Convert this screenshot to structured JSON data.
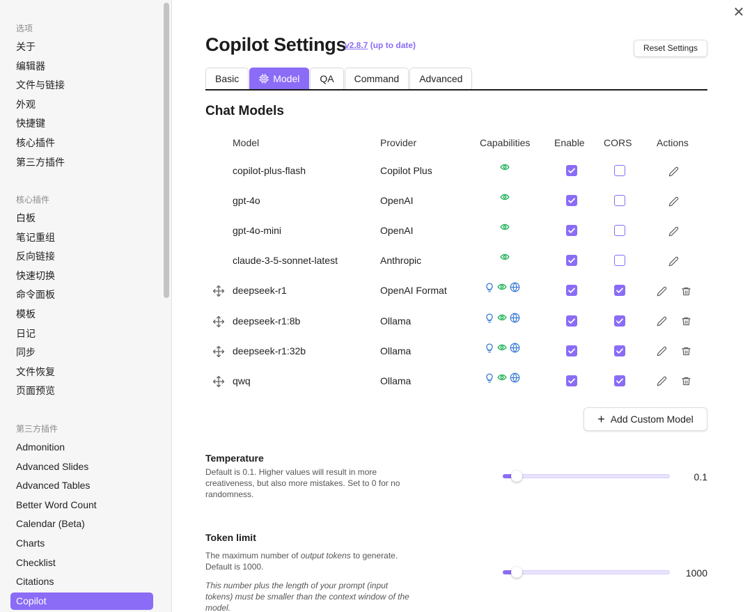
{
  "sidebar": {
    "groups": [
      {
        "title": "选项",
        "items": [
          "关于",
          "编辑器",
          "文件与链接",
          "外观",
          "快捷键",
          "核心插件",
          "第三方插件"
        ]
      },
      {
        "title": "核心插件",
        "items": [
          "白板",
          "笔记重组",
          "反向链接",
          "快速切换",
          "命令面板",
          "模板",
          "日记",
          "同步",
          "文件恢复",
          "页面预览"
        ]
      },
      {
        "title": "第三方插件",
        "items": [
          "Admonition",
          "Advanced Slides",
          "Advanced Tables",
          "Better Word Count",
          "Calendar (Beta)",
          "Charts",
          "Checklist",
          "Citations",
          "Copilot"
        ]
      }
    ],
    "active_item": "Copilot"
  },
  "header": {
    "title": "Copilot Settings",
    "version": "v2.8.7",
    "version_status": "(up to date)",
    "reset_label": "Reset Settings",
    "close_symbol": "✕"
  },
  "tabs": [
    {
      "label": "Basic",
      "active": false,
      "icon": ""
    },
    {
      "label": "Model",
      "active": true,
      "icon": "chip-icon"
    },
    {
      "label": "QA",
      "active": false,
      "icon": ""
    },
    {
      "label": "Command",
      "active": false,
      "icon": ""
    },
    {
      "label": "Advanced",
      "active": false,
      "icon": ""
    }
  ],
  "chat_models": {
    "section_title": "Chat Models",
    "columns": {
      "model": "Model",
      "provider": "Provider",
      "capabilities": "Capabilities",
      "enable": "Enable",
      "cors": "CORS",
      "actions": "Actions"
    },
    "rows": [
      {
        "model": "copilot-plus-flash",
        "provider": "Copilot Plus",
        "caps": [
          "vision"
        ],
        "enable": true,
        "cors": false,
        "builtin": true
      },
      {
        "model": "gpt-4o",
        "provider": "OpenAI",
        "caps": [
          "vision"
        ],
        "enable": true,
        "cors": false,
        "builtin": true
      },
      {
        "model": "gpt-4o-mini",
        "provider": "OpenAI",
        "caps": [
          "vision"
        ],
        "enable": true,
        "cors": false,
        "builtin": true
      },
      {
        "model": "claude-3-5-sonnet-latest",
        "provider": "Anthropic",
        "caps": [
          "vision"
        ],
        "enable": true,
        "cors": false,
        "builtin": true
      },
      {
        "model": "deepseek-r1",
        "provider": "OpenAI Format",
        "caps": [
          "reasoning",
          "vision",
          "websearch"
        ],
        "enable": true,
        "cors": true,
        "builtin": false
      },
      {
        "model": "deepseek-r1:8b",
        "provider": "Ollama",
        "caps": [
          "reasoning",
          "vision",
          "websearch"
        ],
        "enable": true,
        "cors": true,
        "builtin": false
      },
      {
        "model": "deepseek-r1:32b",
        "provider": "Ollama",
        "caps": [
          "reasoning",
          "vision",
          "websearch"
        ],
        "enable": true,
        "cors": true,
        "builtin": false
      },
      {
        "model": "qwq",
        "provider": "Ollama",
        "caps": [
          "reasoning",
          "vision",
          "websearch"
        ],
        "enable": true,
        "cors": true,
        "builtin": false
      }
    ],
    "add_label": "Add Custom Model"
  },
  "settings": {
    "temperature": {
      "name": "Temperature",
      "description": "Default is 0.1. Higher values will result in more creativeness, but also more mistakes. Set to 0 for no randomness.",
      "value": "0.1",
      "fraction": 0.05
    },
    "token_limit": {
      "name": "Token limit",
      "desc_before": "The maximum number of ",
      "desc_em": "output tokens",
      "desc_after": " to generate. Default is 1000.",
      "note": "This number plus the length of your prompt (input tokens) must be smaller than the context window of the model.",
      "value": "1000",
      "fraction": 0.05
    }
  },
  "colors": {
    "accent": "#8b6cf6",
    "vision": "#22b35a",
    "reasoning": "#3a7bd5",
    "websearch": "#3a7bd5"
  }
}
